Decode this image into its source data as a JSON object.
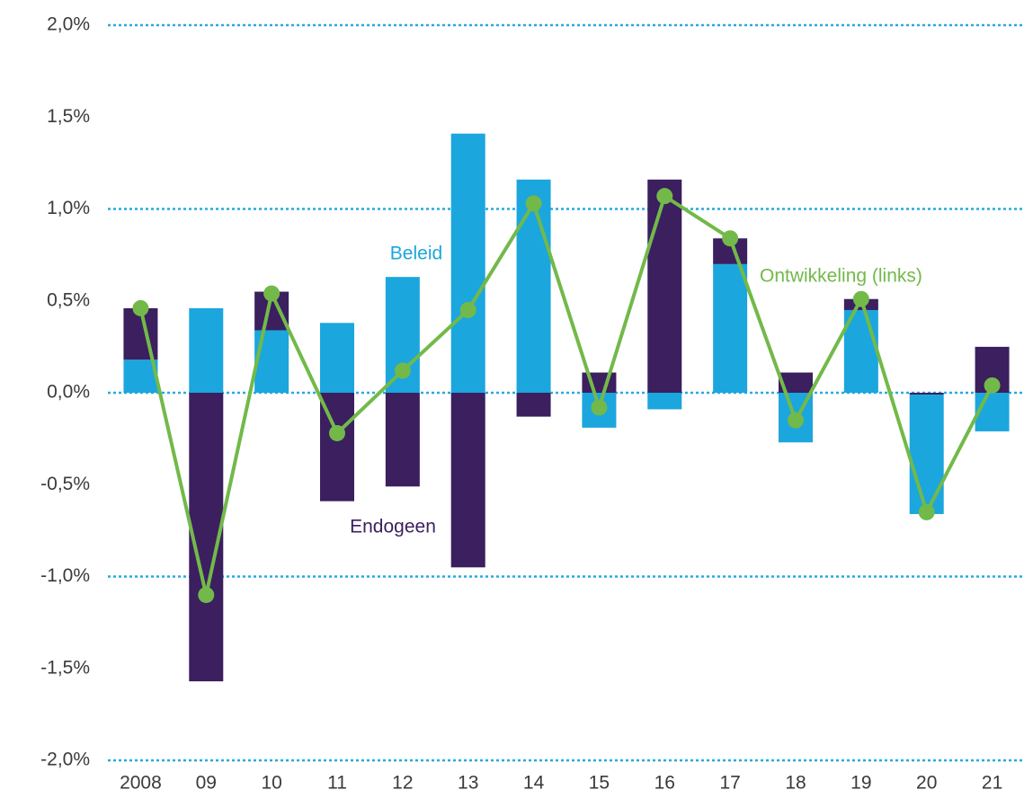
{
  "chart_data": {
    "type": "stacked_bar_line",
    "categories": [
      "2008",
      "09",
      "10",
      "11",
      "12",
      "13",
      "14",
      "15",
      "16",
      "17",
      "18",
      "19",
      "20",
      "21"
    ],
    "series": [
      {
        "name": "Beleid",
        "color": "#1ba6de",
        "kind": "bar",
        "values": [
          0.18,
          0.46,
          0.34,
          0.38,
          0.63,
          1.41,
          1.16,
          -0.19,
          -0.09,
          0.7,
          -0.27,
          0.45,
          -0.65,
          -0.21
        ]
      },
      {
        "name": "Endogeen",
        "color": "#3b1f5e",
        "kind": "bar",
        "values": [
          0.28,
          -1.57,
          0.21,
          -0.59,
          -0.51,
          -0.95,
          -0.13,
          0.11,
          1.16,
          0.14,
          0.11,
          0.06,
          -0.01,
          0.25
        ]
      },
      {
        "name": "Ontwikkeling (links)",
        "color": "#72b94a",
        "kind": "line",
        "values": [
          0.46,
          -1.1,
          0.54,
          -0.22,
          0.12,
          0.45,
          1.03,
          -0.08,
          1.07,
          0.84,
          -0.15,
          0.51,
          -0.65,
          0.04
        ]
      }
    ],
    "ylim": [
      -2,
      2
    ],
    "yticks": [
      {
        "value": 2,
        "label": "2,0%"
      },
      {
        "value": 1.5,
        "label": "1,5%"
      },
      {
        "value": 1,
        "label": "1,0%"
      },
      {
        "value": 0.5,
        "label": "0,5%"
      },
      {
        "value": 0,
        "label": "0,0%"
      },
      {
        "value": -0.5,
        "label": "-0,5%"
      },
      {
        "value": -1,
        "label": "-1,0%"
      },
      {
        "value": -1.5,
        "label": "-1,5%"
      },
      {
        "value": -2,
        "label": "-2,0%"
      }
    ],
    "gridlines": [
      2,
      1,
      0,
      -1,
      -2
    ],
    "grid_color": "#29a9e0"
  }
}
